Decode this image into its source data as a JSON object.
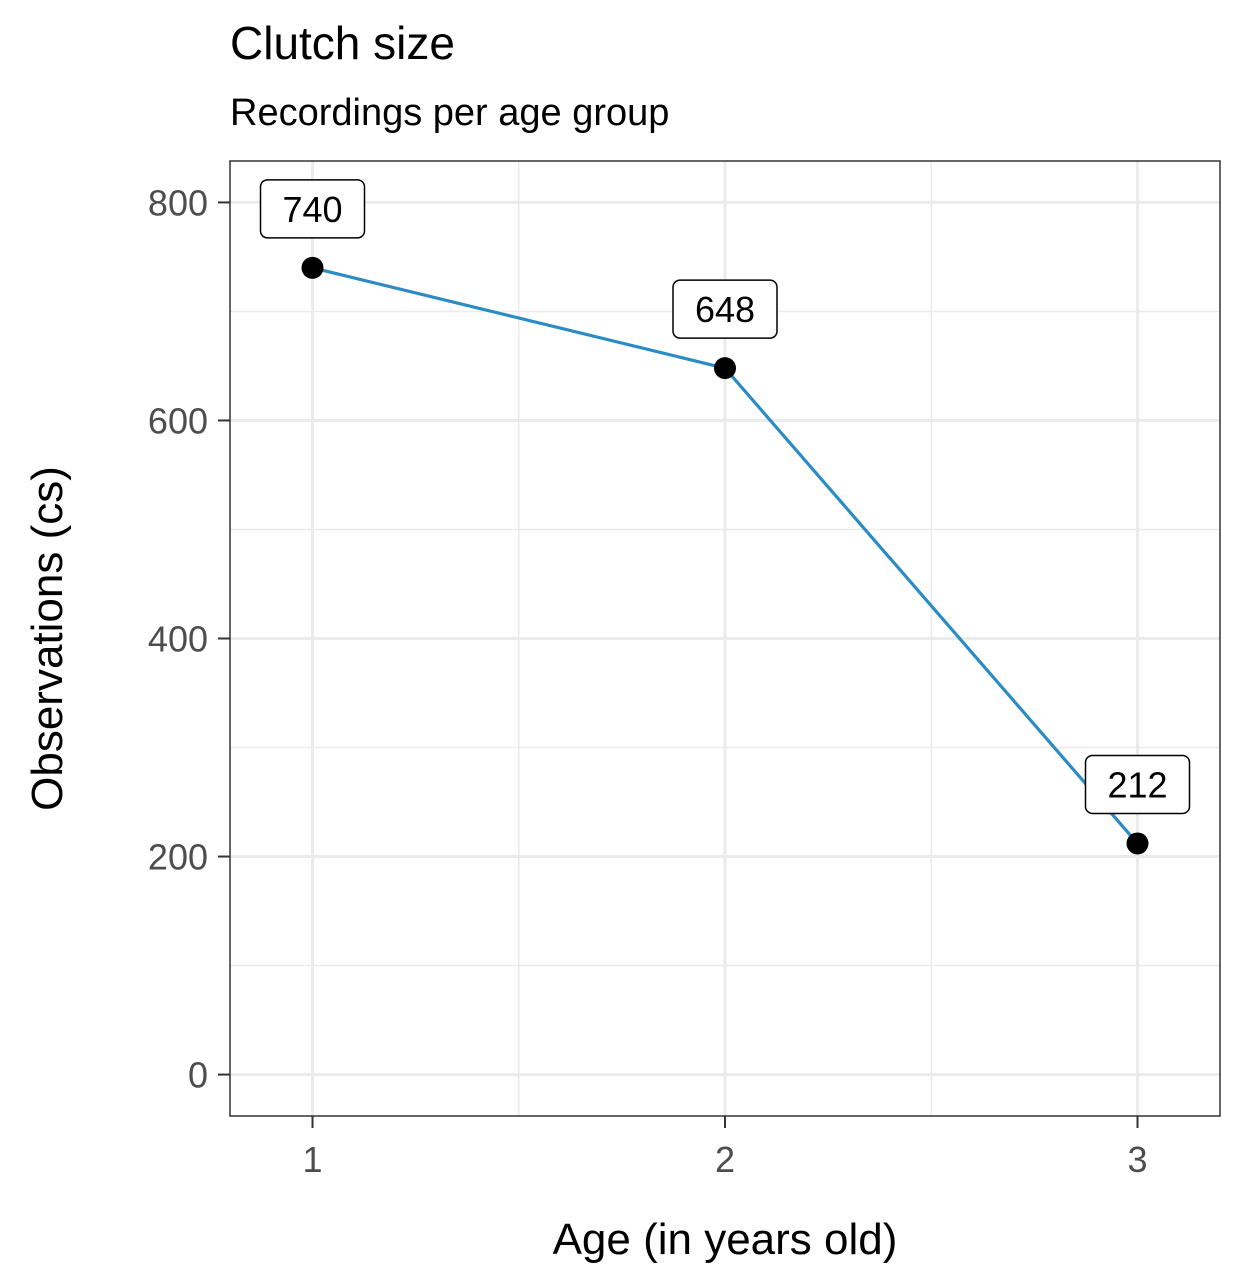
{
  "chart_data": {
    "type": "line",
    "title": "Clutch size",
    "subtitle": "Recordings per age group",
    "xlabel": "Age (in years old)",
    "ylabel": "Observations (cs)",
    "x": [
      1,
      2,
      3
    ],
    "values": [
      740,
      648,
      212
    ],
    "data_labels": [
      "740",
      "648",
      "212"
    ],
    "xlim": [
      0.8,
      3.2
    ],
    "ylim": [
      -38,
      838
    ],
    "x_ticks": [
      1,
      2,
      3
    ],
    "x_tick_labels": [
      "1",
      "2",
      "3"
    ],
    "y_ticks": [
      0,
      200,
      400,
      600,
      800
    ],
    "y_tick_labels": [
      "0",
      "200",
      "400",
      "600",
      "800"
    ],
    "grid": true,
    "line_color": "#2b8cc4",
    "point_color": "#000000"
  }
}
